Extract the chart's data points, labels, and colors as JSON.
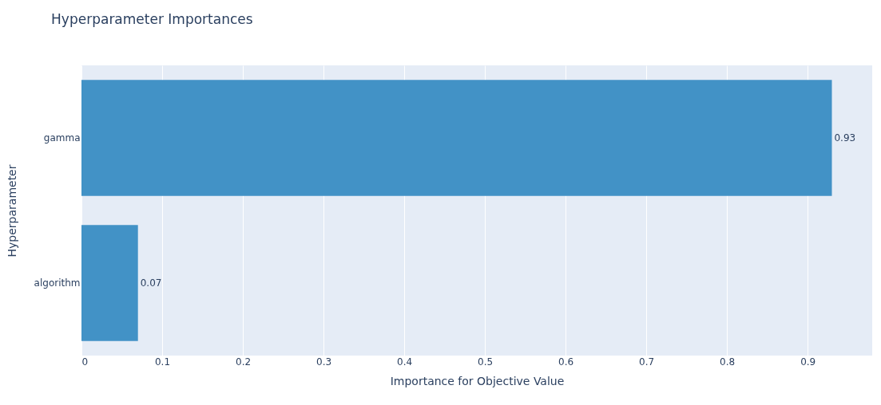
{
  "chart_data": {
    "type": "bar",
    "orientation": "horizontal",
    "title": "Hyperparameter Importances",
    "xlabel": "Importance for Objective Value",
    "ylabel": "Hyperparameter",
    "categories": [
      "gamma",
      "algorithm"
    ],
    "values": [
      0.93,
      0.07
    ],
    "color": "#4292c6",
    "data_labels": true,
    "xlim": [
      0,
      0.98
    ],
    "xticks": [
      0,
      0.1,
      0.2,
      0.3,
      0.4,
      0.5,
      0.6,
      0.7,
      0.8,
      0.9
    ],
    "grid": "x"
  }
}
